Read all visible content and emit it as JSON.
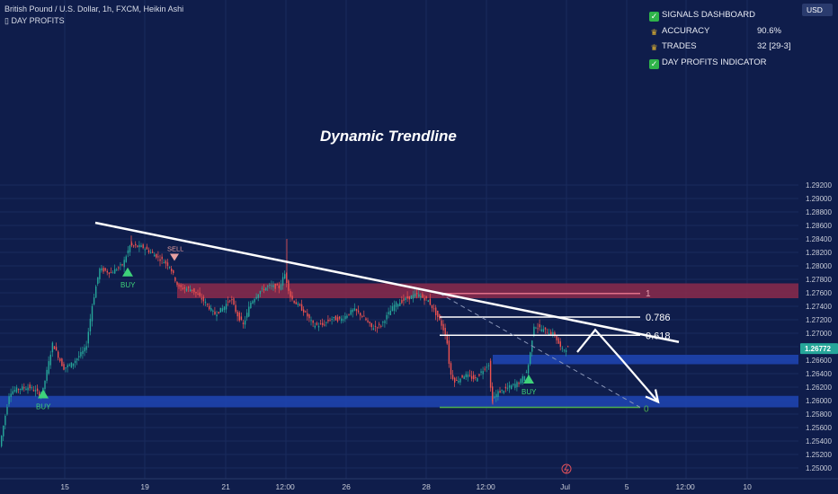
{
  "header": {
    "title": "British Pound / U.S. Dollar, 1h, FXCM, Heikin Ashi",
    "indicator": "DAY PROFITS"
  },
  "dashboard": {
    "signals_label": "SIGNALS DASHBOARD",
    "accuracy_label": "ACCURACY",
    "accuracy_value": "90.6%",
    "trades_label": "TRADES",
    "trades_value": "32 [29-3]",
    "indicator_label": "DAY PROFITS INDICATOR"
  },
  "currency_button": "USD",
  "colors": {
    "background": "#0f1d4b",
    "bull": "#26a69a",
    "bear": "#ef5350",
    "resistance_zone": "#8b2a4b",
    "support_zone": "#1e45b4",
    "price_tag": "#26a69a"
  },
  "annotations": {
    "trendline_label": "Dynamic Trendline",
    "fib_1": "1",
    "fib_0786": "0.786",
    "fib_0618": "0.618",
    "fib_0": "0",
    "sell": "SELL",
    "buy": "BUY"
  },
  "chart_data": {
    "type": "candlestick",
    "symbol": "GBPUSD",
    "timeframe": "1h",
    "price_tag": "1.26772",
    "ylim": [
      1.249,
      1.2925
    ],
    "y_ticks": [
      "1.25000",
      "1.25200",
      "1.25400",
      "1.25600",
      "1.25800",
      "1.26000",
      "1.26200",
      "1.26400",
      "1.26600",
      "1.26800",
      "1.27000",
      "1.27200",
      "1.27400",
      "1.27600",
      "1.27800",
      "1.28000",
      "1.28200",
      "1.28400",
      "1.28600",
      "1.28800",
      "1.29000",
      "1.29200"
    ],
    "x_ticks": [
      "15",
      "19",
      "21",
      "12:00",
      "26",
      "28",
      "12:00",
      "Jul",
      "5",
      "12:00",
      "10"
    ],
    "path": [
      [
        0,
        1.2525
      ],
      [
        12,
        1.2612
      ],
      [
        22,
        1.2618
      ],
      [
        34,
        1.262
      ],
      [
        48,
        1.2608
      ],
      [
        60,
        1.2685
      ],
      [
        72,
        1.2648
      ],
      [
        82,
        1.2655
      ],
      [
        97,
        1.2678
      ],
      [
        104,
        1.2742
      ],
      [
        112,
        1.2795
      ],
      [
        125,
        1.279
      ],
      [
        138,
        1.2802
      ],
      [
        146,
        1.283
      ],
      [
        160,
        1.2828
      ],
      [
        175,
        1.2815
      ],
      [
        190,
        1.28
      ],
      [
        200,
        1.2768
      ],
      [
        215,
        1.2765
      ],
      [
        230,
        1.2745
      ],
      [
        240,
        1.2728
      ],
      [
        250,
        1.2738
      ],
      [
        258,
        1.2752
      ],
      [
        265,
        1.2728
      ],
      [
        272,
        1.2712
      ],
      [
        280,
        1.2745
      ],
      [
        290,
        1.2762
      ],
      [
        300,
        1.277
      ],
      [
        312,
        1.2768
      ],
      [
        318,
        1.2788
      ],
      [
        325,
        1.2752
      ],
      [
        340,
        1.2732
      ],
      [
        350,
        1.2712
      ],
      [
        360,
        1.2712
      ],
      [
        370,
        1.2722
      ],
      [
        380,
        1.272
      ],
      [
        395,
        1.2735
      ],
      [
        405,
        1.2725
      ],
      [
        415,
        1.2708
      ],
      [
        425,
        1.2712
      ],
      [
        440,
        1.2742
      ],
      [
        455,
        1.2752
      ],
      [
        465,
        1.2758
      ],
      [
        478,
        1.2748
      ],
      [
        490,
        1.272
      ],
      [
        498,
        1.2695
      ],
      [
        502,
        1.264
      ],
      [
        508,
        1.2628
      ],
      [
        518,
        1.2638
      ],
      [
        530,
        1.2632
      ],
      [
        540,
        1.2648
      ],
      [
        545,
        1.2655
      ],
      [
        548,
        1.26
      ],
      [
        555,
        1.2612
      ],
      [
        565,
        1.2618
      ],
      [
        580,
        1.2628
      ],
      [
        588,
        1.2645
      ],
      [
        592,
        1.2678
      ],
      [
        595,
        1.2712
      ],
      [
        605,
        1.2705
      ],
      [
        618,
        1.2698
      ],
      [
        626,
        1.2675
      ],
      [
        632,
        1.2678
      ]
    ],
    "zones": [
      {
        "name": "resistance",
        "from": 1.2752,
        "to": 1.2774,
        "start_index": "19"
      },
      {
        "name": "support_upper",
        "from": 1.2654,
        "to": 1.2668,
        "start_index": "28 12:00"
      },
      {
        "name": "support_lower",
        "from": 1.259,
        "to": 1.2607,
        "start_index": "15"
      }
    ],
    "fib_levels": [
      {
        "label": "1",
        "price": 1.2759
      },
      {
        "label": "0.786",
        "price": 1.2724
      },
      {
        "label": "0.618",
        "price": 1.2697
      },
      {
        "label": "0",
        "price": 1.259
      }
    ],
    "trendline": {
      "from": [
        106,
        1.2864
      ],
      "to": [
        755,
        1.2687
      ]
    },
    "signals": [
      {
        "type": "BUY",
        "price": 1.2606
      },
      {
        "type": "BUY",
        "price": 1.2787
      },
      {
        "type": "SELL",
        "price": 1.2818
      },
      {
        "type": "BUY",
        "price": 1.2628
      }
    ],
    "projection": [
      [
        642,
        1.2672
      ],
      [
        662,
        1.2705
      ],
      [
        690,
        1.2663
      ],
      [
        732,
        1.2598
      ]
    ]
  }
}
